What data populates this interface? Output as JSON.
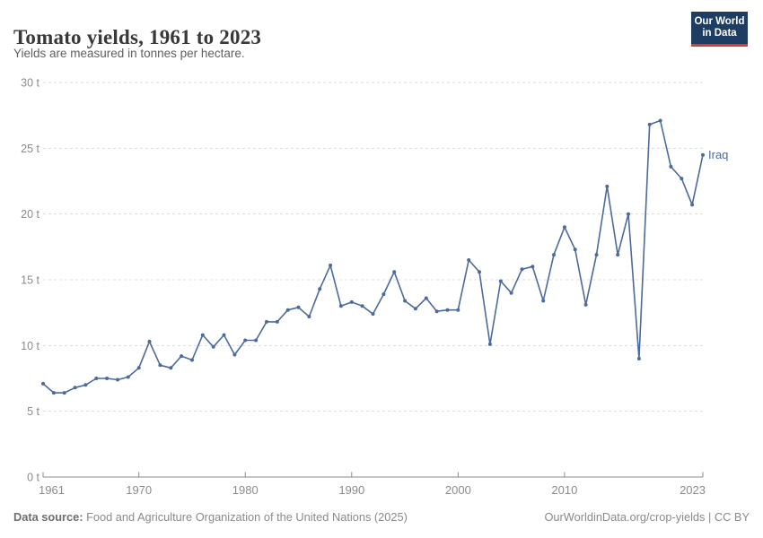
{
  "header": {
    "title": "Tomato yields, 1961 to 2023",
    "subtitle": "Yields are measured in tonnes per hectare.",
    "logo": {
      "line1": "Our World",
      "line2": "in Data"
    }
  },
  "chart_data": {
    "type": "line",
    "title": "Tomato yields, 1961 to 2023",
    "ylabel": "tonnes per hectare",
    "unit_suffix": " t",
    "grid": true,
    "ylim": [
      0,
      30
    ],
    "yticks": [
      0,
      5,
      10,
      15,
      20,
      25,
      30
    ],
    "xticks": [
      1961,
      1970,
      1980,
      1990,
      2000,
      2010,
      2023
    ],
    "x": [
      1961,
      1962,
      1963,
      1964,
      1965,
      1966,
      1967,
      1968,
      1969,
      1970,
      1971,
      1972,
      1973,
      1974,
      1975,
      1976,
      1977,
      1978,
      1979,
      1980,
      1981,
      1982,
      1983,
      1984,
      1985,
      1986,
      1987,
      1988,
      1989,
      1990,
      1991,
      1992,
      1993,
      1994,
      1995,
      1996,
      1997,
      1998,
      1999,
      2000,
      2001,
      2002,
      2003,
      2004,
      2005,
      2006,
      2007,
      2008,
      2009,
      2010,
      2011,
      2012,
      2013,
      2014,
      2015,
      2016,
      2017,
      2018,
      2019,
      2020,
      2021,
      2022,
      2023
    ],
    "series": [
      {
        "name": "Iraq",
        "values": [
          7.1,
          6.4,
          6.4,
          6.8,
          7.0,
          7.5,
          7.5,
          7.4,
          7.6,
          8.3,
          10.3,
          8.5,
          8.3,
          9.2,
          8.9,
          10.8,
          9.9,
          10.8,
          9.3,
          10.4,
          10.4,
          11.8,
          11.8,
          12.7,
          12.9,
          12.2,
          14.3,
          16.1,
          13.0,
          13.3,
          13.0,
          12.4,
          13.9,
          15.6,
          13.4,
          12.8,
          13.6,
          12.6,
          12.7,
          12.7,
          16.5,
          15.6,
          10.1,
          14.9,
          14.0,
          15.8,
          16.0,
          13.4,
          16.9,
          19.0,
          17.3,
          13.1,
          16.9,
          22.1,
          16.9,
          20.0,
          9.0,
          26.8,
          27.1,
          23.6,
          22.7,
          20.7,
          24.5
        ]
      }
    ],
    "end_label": "Iraq",
    "line_color": "#4c6a9c",
    "grid_color": "#dcdcdc",
    "axis_text_color": "#8b8b8b"
  },
  "footer": {
    "source_label": "Data source:",
    "source_text": " Food and Agriculture Organization of the United Nations (2025)",
    "link_text": "OurWorldinData.org/crop-yields",
    "separator": " | ",
    "license": "CC BY"
  }
}
